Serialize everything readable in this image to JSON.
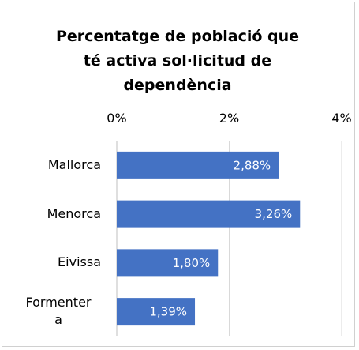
{
  "chart_data": {
    "type": "bar",
    "orientation": "horizontal",
    "title": "Percentatge de població que té activa sol·licitud de dependència",
    "categories": [
      "Mallorca",
      "Menorca",
      "Eivissa",
      "Formentera"
    ],
    "values": [
      2.88,
      3.26,
      1.8,
      1.39
    ],
    "value_labels": [
      "2,88%",
      "3,26%",
      "1,80%",
      "1,39%"
    ],
    "color": "#4472c4",
    "xlim": [
      0,
      4
    ],
    "xticks": [
      {
        "value": 0,
        "label": "0%"
      },
      {
        "value": 2,
        "label": "2%"
      },
      {
        "value": 4,
        "label": "4%"
      }
    ],
    "grid": true
  }
}
